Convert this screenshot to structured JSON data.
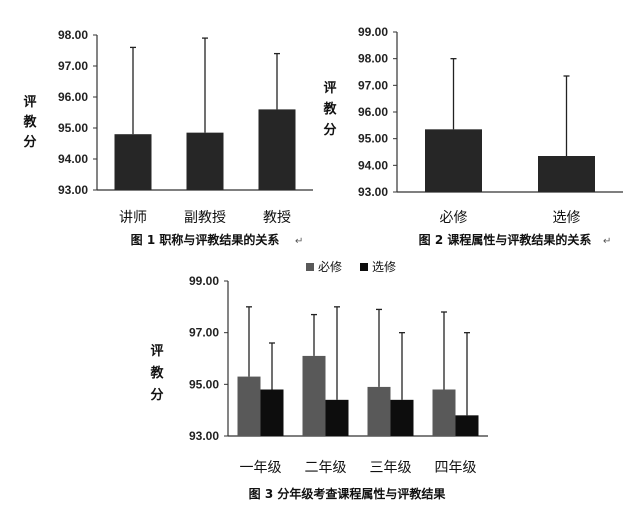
{
  "chart_data": [
    {
      "type": "bar",
      "title": "图 1 职称与评教结果的关系",
      "ylabel": "评教分",
      "ylim": [
        93.0,
        98.0
      ],
      "yticks": [
        "93.00",
        "94.00",
        "95.00",
        "96.00",
        "97.00",
        "98.00"
      ],
      "categories": [
        "讲师",
        "副教授",
        "教授"
      ],
      "series": [
        {
          "values": [
            94.8,
            94.85,
            95.6
          ],
          "error_upper": [
            97.6,
            97.9,
            97.4
          ],
          "color": "#262626"
        }
      ]
    },
    {
      "type": "bar",
      "title": "图 2 课程属性与评教结果的关系",
      "ylabel": "评教分",
      "ylim": [
        93.0,
        99.0
      ],
      "yticks": [
        "93.00",
        "94.00",
        "95.00",
        "96.00",
        "97.00",
        "98.00",
        "99.00"
      ],
      "categories": [
        "必修",
        "选修"
      ],
      "series": [
        {
          "values": [
            95.35,
            94.35
          ],
          "error_upper": [
            98.0,
            97.35
          ],
          "color": "#262626"
        }
      ]
    },
    {
      "type": "bar",
      "title": "图 3 分年级考查课程属性与评教结果",
      "ylabel": "评教分",
      "ylim": [
        93.0,
        99.0
      ],
      "yticks": [
        "93.00",
        "95.00",
        "97.00",
        "99.00"
      ],
      "categories": [
        "一年级",
        "二年级",
        "三年级",
        "四年级"
      ],
      "legend": "top",
      "series": [
        {
          "name": "必修",
          "values": [
            95.3,
            96.1,
            94.9,
            94.8
          ],
          "error_upper": [
            98.0,
            97.7,
            97.9,
            97.8
          ],
          "color": "#595959"
        },
        {
          "name": "选修",
          "values": [
            94.8,
            94.4,
            94.4,
            93.8
          ],
          "error_upper": [
            96.6,
            98.0,
            97.0,
            97.0
          ],
          "color": "#0d0d0d"
        }
      ]
    }
  ]
}
